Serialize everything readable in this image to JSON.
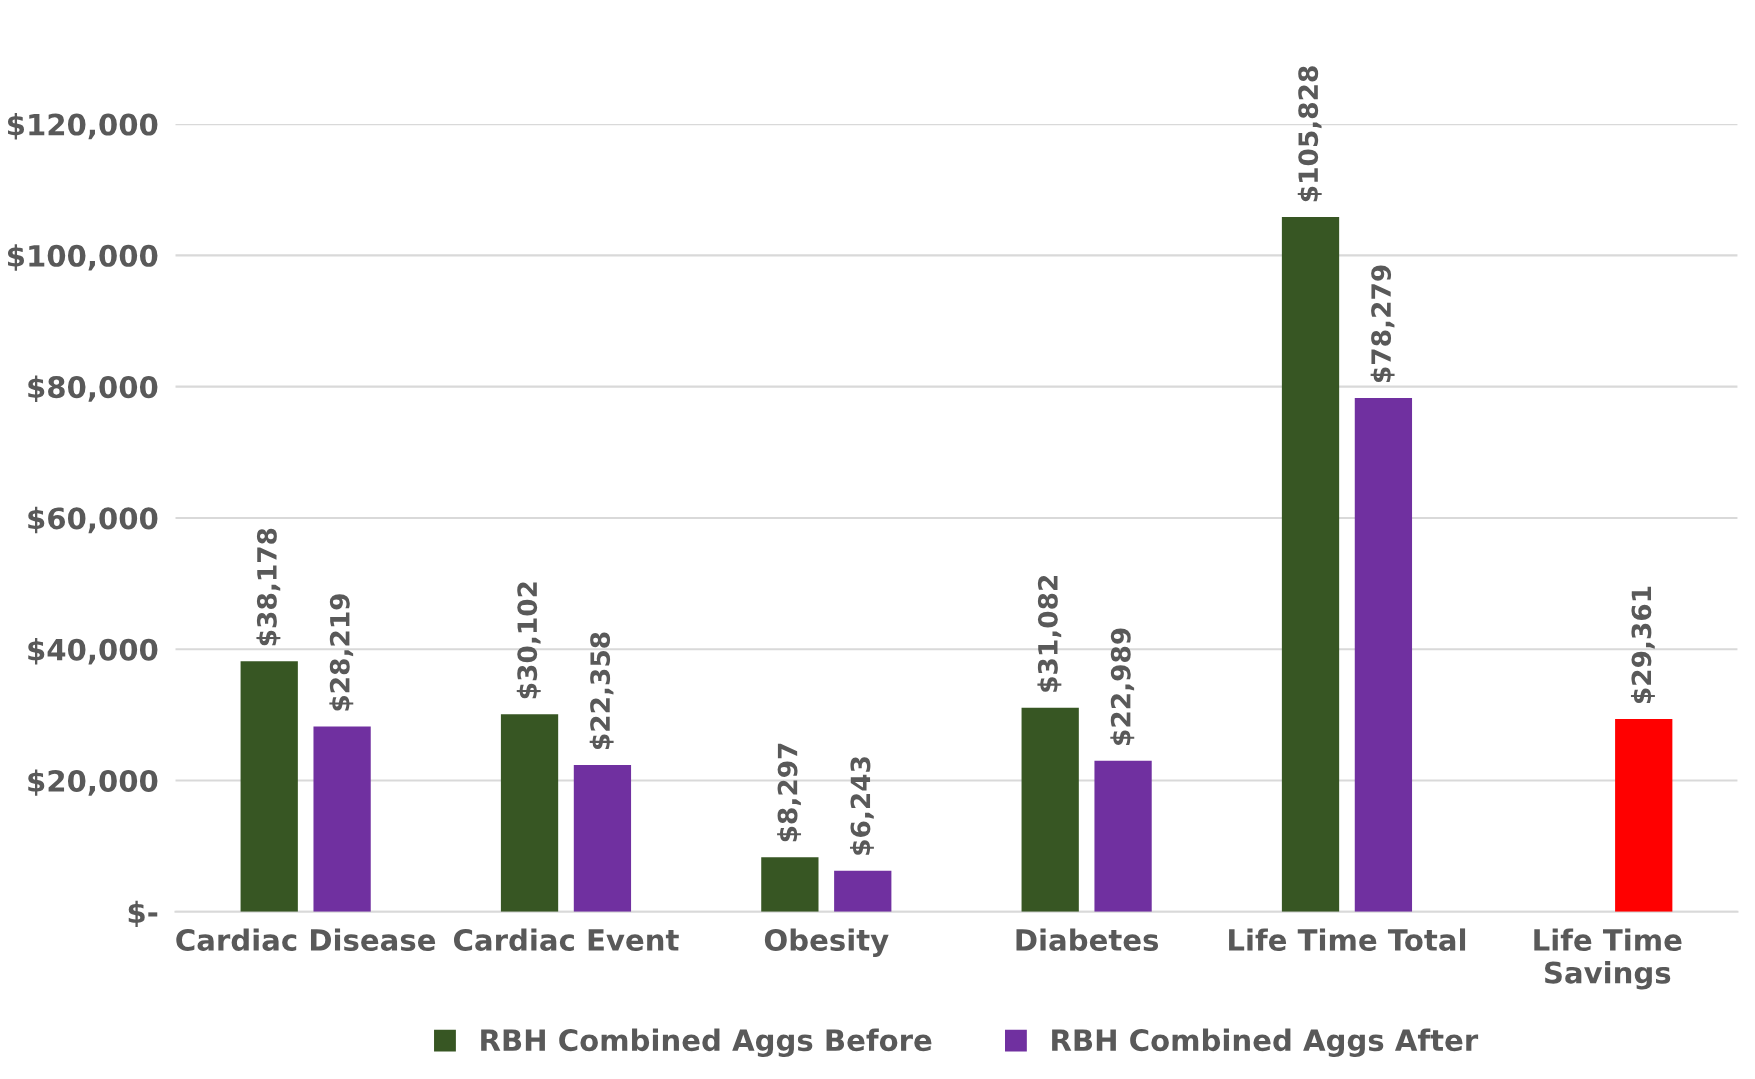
{
  "chart_data": {
    "type": "bar",
    "categories": [
      "Cardiac Disease",
      "Cardiac Event",
      "Obesity",
      "Diabetes",
      "Life Time Total",
      "Life Time\nSavings"
    ],
    "series": [
      {
        "name": "RBH Combined Aggs Before",
        "color": "#375623",
        "values": [
          38178,
          30102,
          8297,
          31082,
          105828,
          null
        ],
        "value_labels": [
          "$38,178",
          "$30,102",
          "$8,297",
          "$31,082",
          "$105,828",
          null
        ]
      },
      {
        "name": "RBH Combined Aggs After",
        "color": "#7030a0",
        "colors": [
          "#7030a0",
          "#7030a0",
          "#7030a0",
          "#7030a0",
          "#7030a0",
          "#ff0000"
        ],
        "values": [
          28219,
          22358,
          6243,
          22989,
          78279,
          29361
        ],
        "value_labels": [
          "$28,219",
          "$22,358",
          "$6,243",
          "$22,989",
          "$78,279",
          "$29,361"
        ]
      }
    ],
    "ylim": [
      0,
      120000
    ],
    "yticks": [
      {
        "value": 0,
        "label": "$-"
      },
      {
        "value": 20000,
        "label": "$20,000"
      },
      {
        "value": 40000,
        "label": "$40,000"
      },
      {
        "value": 60000,
        "label": "$60,000"
      },
      {
        "value": 80000,
        "label": "$80,000"
      },
      {
        "value": 100000,
        "label": "$100,000"
      },
      {
        "value": 120000,
        "label": "$120,000"
      }
    ],
    "grid": "y",
    "legend": "bottom"
  }
}
